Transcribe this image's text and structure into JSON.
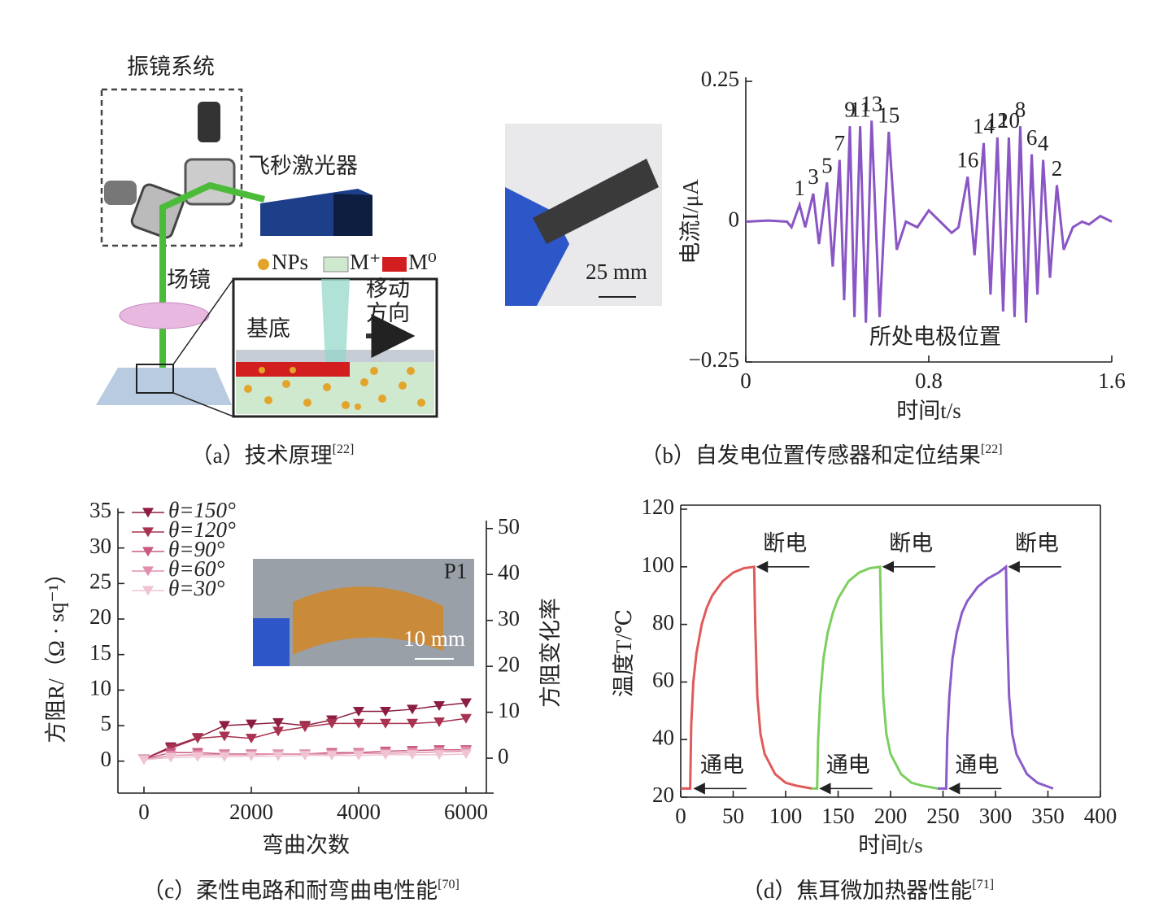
{
  "diagram": {
    "title": "振镜系统",
    "laser": "飞秒激光器",
    "lens": "场镜",
    "substrate": "基底",
    "move": "移动",
    "direction": "方向",
    "legend": [
      "NPs",
      "M⁺",
      "M⁰"
    ]
  },
  "captions": [
    {
      "text": "（a）技术原理",
      "ref": "[22]"
    },
    {
      "text": "（b）自发电位置传感器和定位结果",
      "ref": "[22]"
    },
    {
      "text": "（c）柔性电路和耐弯曲电性能",
      "ref": "[70]"
    },
    {
      "text": "（d）焦耳微加热器性能",
      "ref": "[71]"
    }
  ],
  "chart_data": [
    {
      "type": "line",
      "xlabel": "时间t/s",
      "ylabel": "电流I/μA",
      "note": "所处电极位置",
      "inset_label": "25 mm",
      "x": [
        0,
        0.1,
        0.18,
        0.2,
        0.235,
        0.26,
        0.295,
        0.32,
        0.355,
        0.38,
        0.41,
        0.43,
        0.455,
        0.475,
        0.5,
        0.525,
        0.55,
        0.585,
        0.625,
        0.66,
        0.7,
        0.75,
        0.8,
        0.85,
        0.9,
        0.93,
        0.97,
        1.0,
        1.04,
        1.07,
        1.1,
        1.125,
        1.15,
        1.175,
        1.2,
        1.225,
        1.25,
        1.275,
        1.3,
        1.33,
        1.36,
        1.39,
        1.43,
        1.47,
        1.5,
        1.55,
        1.6
      ],
      "series": [
        {
          "color": "#8a55c4",
          "values": [
            0,
            0.002,
            0,
            -0.01,
            0.03,
            -0.01,
            0.05,
            -0.04,
            0.07,
            -0.08,
            0.11,
            -0.14,
            0.17,
            -0.17,
            0.17,
            -0.18,
            0.18,
            -0.17,
            0.16,
            -0.05,
            0,
            -0.01,
            0.02,
            0,
            -0.02,
            -0.01,
            0.08,
            -0.06,
            0.14,
            -0.13,
            0.15,
            -0.16,
            0.15,
            -0.17,
            0.17,
            -0.18,
            0.12,
            -0.13,
            0.11,
            -0.1,
            0.065,
            -0.05,
            -0.01,
            0,
            -0.005,
            0.01,
            0
          ]
        }
      ],
      "xlim": [
        0,
        1.6
      ],
      "xticks": [
        0,
        0.8,
        1.6
      ],
      "ylim": [
        -0.25,
        0.25
      ],
      "yticks": [
        {
          "value": -0.25,
          "label": "−0.25"
        },
        0,
        0.25
      ],
      "annotations": [
        {
          "text": "1",
          "x": 0.235,
          "y": 0.03
        },
        {
          "text": "3",
          "x": 0.295,
          "y": 0.05
        },
        {
          "text": "5",
          "x": 0.355,
          "y": 0.07
        },
        {
          "text": "7",
          "x": 0.41,
          "y": 0.11
        },
        {
          "text": "9",
          "x": 0.455,
          "y": 0.17
        },
        {
          "text": "11",
          "x": 0.5,
          "y": 0.17
        },
        {
          "text": "13",
          "x": 0.55,
          "y": 0.18
        },
        {
          "text": "15",
          "x": 0.625,
          "y": 0.16
        },
        {
          "text": "16",
          "x": 0.97,
          "y": 0.08
        },
        {
          "text": "14",
          "x": 1.04,
          "y": 0.14
        },
        {
          "text": "12",
          "x": 1.1,
          "y": 0.15
        },
        {
          "text": "10",
          "x": 1.15,
          "y": 0.15
        },
        {
          "text": "8",
          "x": 1.2,
          "y": 0.17
        },
        {
          "text": "6",
          "x": 1.25,
          "y": 0.12
        },
        {
          "text": "4",
          "x": 1.3,
          "y": 0.11
        },
        {
          "text": "2",
          "x": 1.36,
          "y": 0.065
        }
      ]
    },
    {
      "type": "line",
      "marker": "triangle-down",
      "xlabel": "弯曲次数",
      "ylabel": "方阻R/（Ω · sq⁻¹）",
      "y2label": "方阻变化率",
      "inset_label": "10 mm",
      "inset_tag": "P1",
      "legend": "upper left",
      "x": [
        0,
        500,
        1000,
        1500,
        2000,
        2500,
        3000,
        3500,
        4000,
        4500,
        5000,
        5500,
        6000
      ],
      "series": [
        {
          "name": "θ=150°",
          "color": "#8c1d40",
          "values": [
            0.3,
            2,
            3.3,
            5,
            5.2,
            5.4,
            5,
            5.8,
            7,
            7,
            7.3,
            7.8,
            8.2
          ]
        },
        {
          "name": "θ=120°",
          "color": "#a8324f",
          "values": [
            0.3,
            1.8,
            3.2,
            3.5,
            3.2,
            4.2,
            4.8,
            5.3,
            5.3,
            5.3,
            5.3,
            5.5,
            6
          ]
        },
        {
          "name": "θ=90°",
          "color": "#c95a80",
          "values": [
            0.3,
            1.2,
            1.2,
            1,
            1,
            1,
            1,
            1.2,
            1.2,
            1.4,
            1.5,
            1.6,
            1.6
          ]
        },
        {
          "name": "θ=60°",
          "color": "#e08fae",
          "values": [
            0.2,
            0.8,
            0.9,
            0.9,
            0.9,
            1,
            1,
            1,
            1.1,
            1.1,
            1.2,
            1.3,
            1.4
          ]
        },
        {
          "name": "θ=30°",
          "color": "#f0c3d3",
          "values": [
            0.2,
            0.5,
            0.6,
            0.6,
            0.7,
            0.7,
            0.8,
            0.8,
            0.8,
            0.9,
            0.9,
            0.9,
            1
          ]
        }
      ],
      "xlim": [
        -485,
        6515
      ],
      "xticks": [
        0,
        2000,
        4000,
        6000
      ],
      "ylim": [
        -4.5,
        35
      ],
      "yticks": [
        0,
        5,
        10,
        15,
        20,
        25,
        30,
        35
      ],
      "y2lim": [
        -7.6,
        53.5
      ],
      "y2ticks": [
        0,
        10,
        20,
        30,
        40,
        50
      ]
    },
    {
      "type": "line",
      "xlabel": "时间t/s",
      "ylabel": "温度T/℃",
      "series": [
        {
          "color": "#e05a5a",
          "x": [
            0,
            9,
            10,
            12,
            15,
            20,
            25,
            30,
            40,
            50,
            60,
            70,
            71,
            73,
            76,
            80,
            90,
            100,
            110,
            125
          ],
          "values": [
            23,
            23,
            45,
            60,
            70,
            80,
            86,
            90,
            95,
            98,
            99.5,
            100,
            80,
            55,
            42,
            35,
            28,
            25,
            24,
            23
          ]
        },
        {
          "color": "#7ccf5e",
          "x": [
            125,
            130,
            131,
            133,
            136,
            140,
            145,
            150,
            160,
            170,
            180,
            190,
            191,
            193,
            196,
            200,
            210,
            220,
            230,
            245
          ],
          "values": [
            23,
            23,
            40,
            55,
            68,
            77,
            84,
            89,
            95,
            98,
            99.5,
            100,
            80,
            55,
            42,
            35,
            28,
            25,
            24,
            23
          ]
        },
        {
          "color": "#8a5cc9",
          "x": [
            245,
            253,
            254,
            256,
            259,
            263,
            268,
            273,
            283,
            293,
            303,
            310,
            311,
            313,
            316,
            320,
            330,
            340,
            355
          ],
          "values": [
            23,
            23,
            40,
            55,
            68,
            77,
            84,
            88,
            93,
            96,
            98,
            100,
            80,
            55,
            42,
            35,
            28,
            25,
            23
          ]
        }
      ],
      "xlim": [
        0,
        400
      ],
      "xticks": [
        0,
        50,
        100,
        150,
        200,
        250,
        300,
        350,
        400
      ],
      "ylim": [
        20,
        120
      ],
      "yticks": [
        20,
        40,
        60,
        80,
        100,
        120
      ],
      "annotations": [
        {
          "text": "断电",
          "x": 70,
          "y": 100
        },
        {
          "text": "断电",
          "x": 190,
          "y": 100
        },
        {
          "text": "断电",
          "x": 310,
          "y": 100
        },
        {
          "text": "通电",
          "x": 10,
          "y": 23
        },
        {
          "text": "通电",
          "x": 130,
          "y": 23
        },
        {
          "text": "通电",
          "x": 253,
          "y": 23
        }
      ]
    }
  ]
}
